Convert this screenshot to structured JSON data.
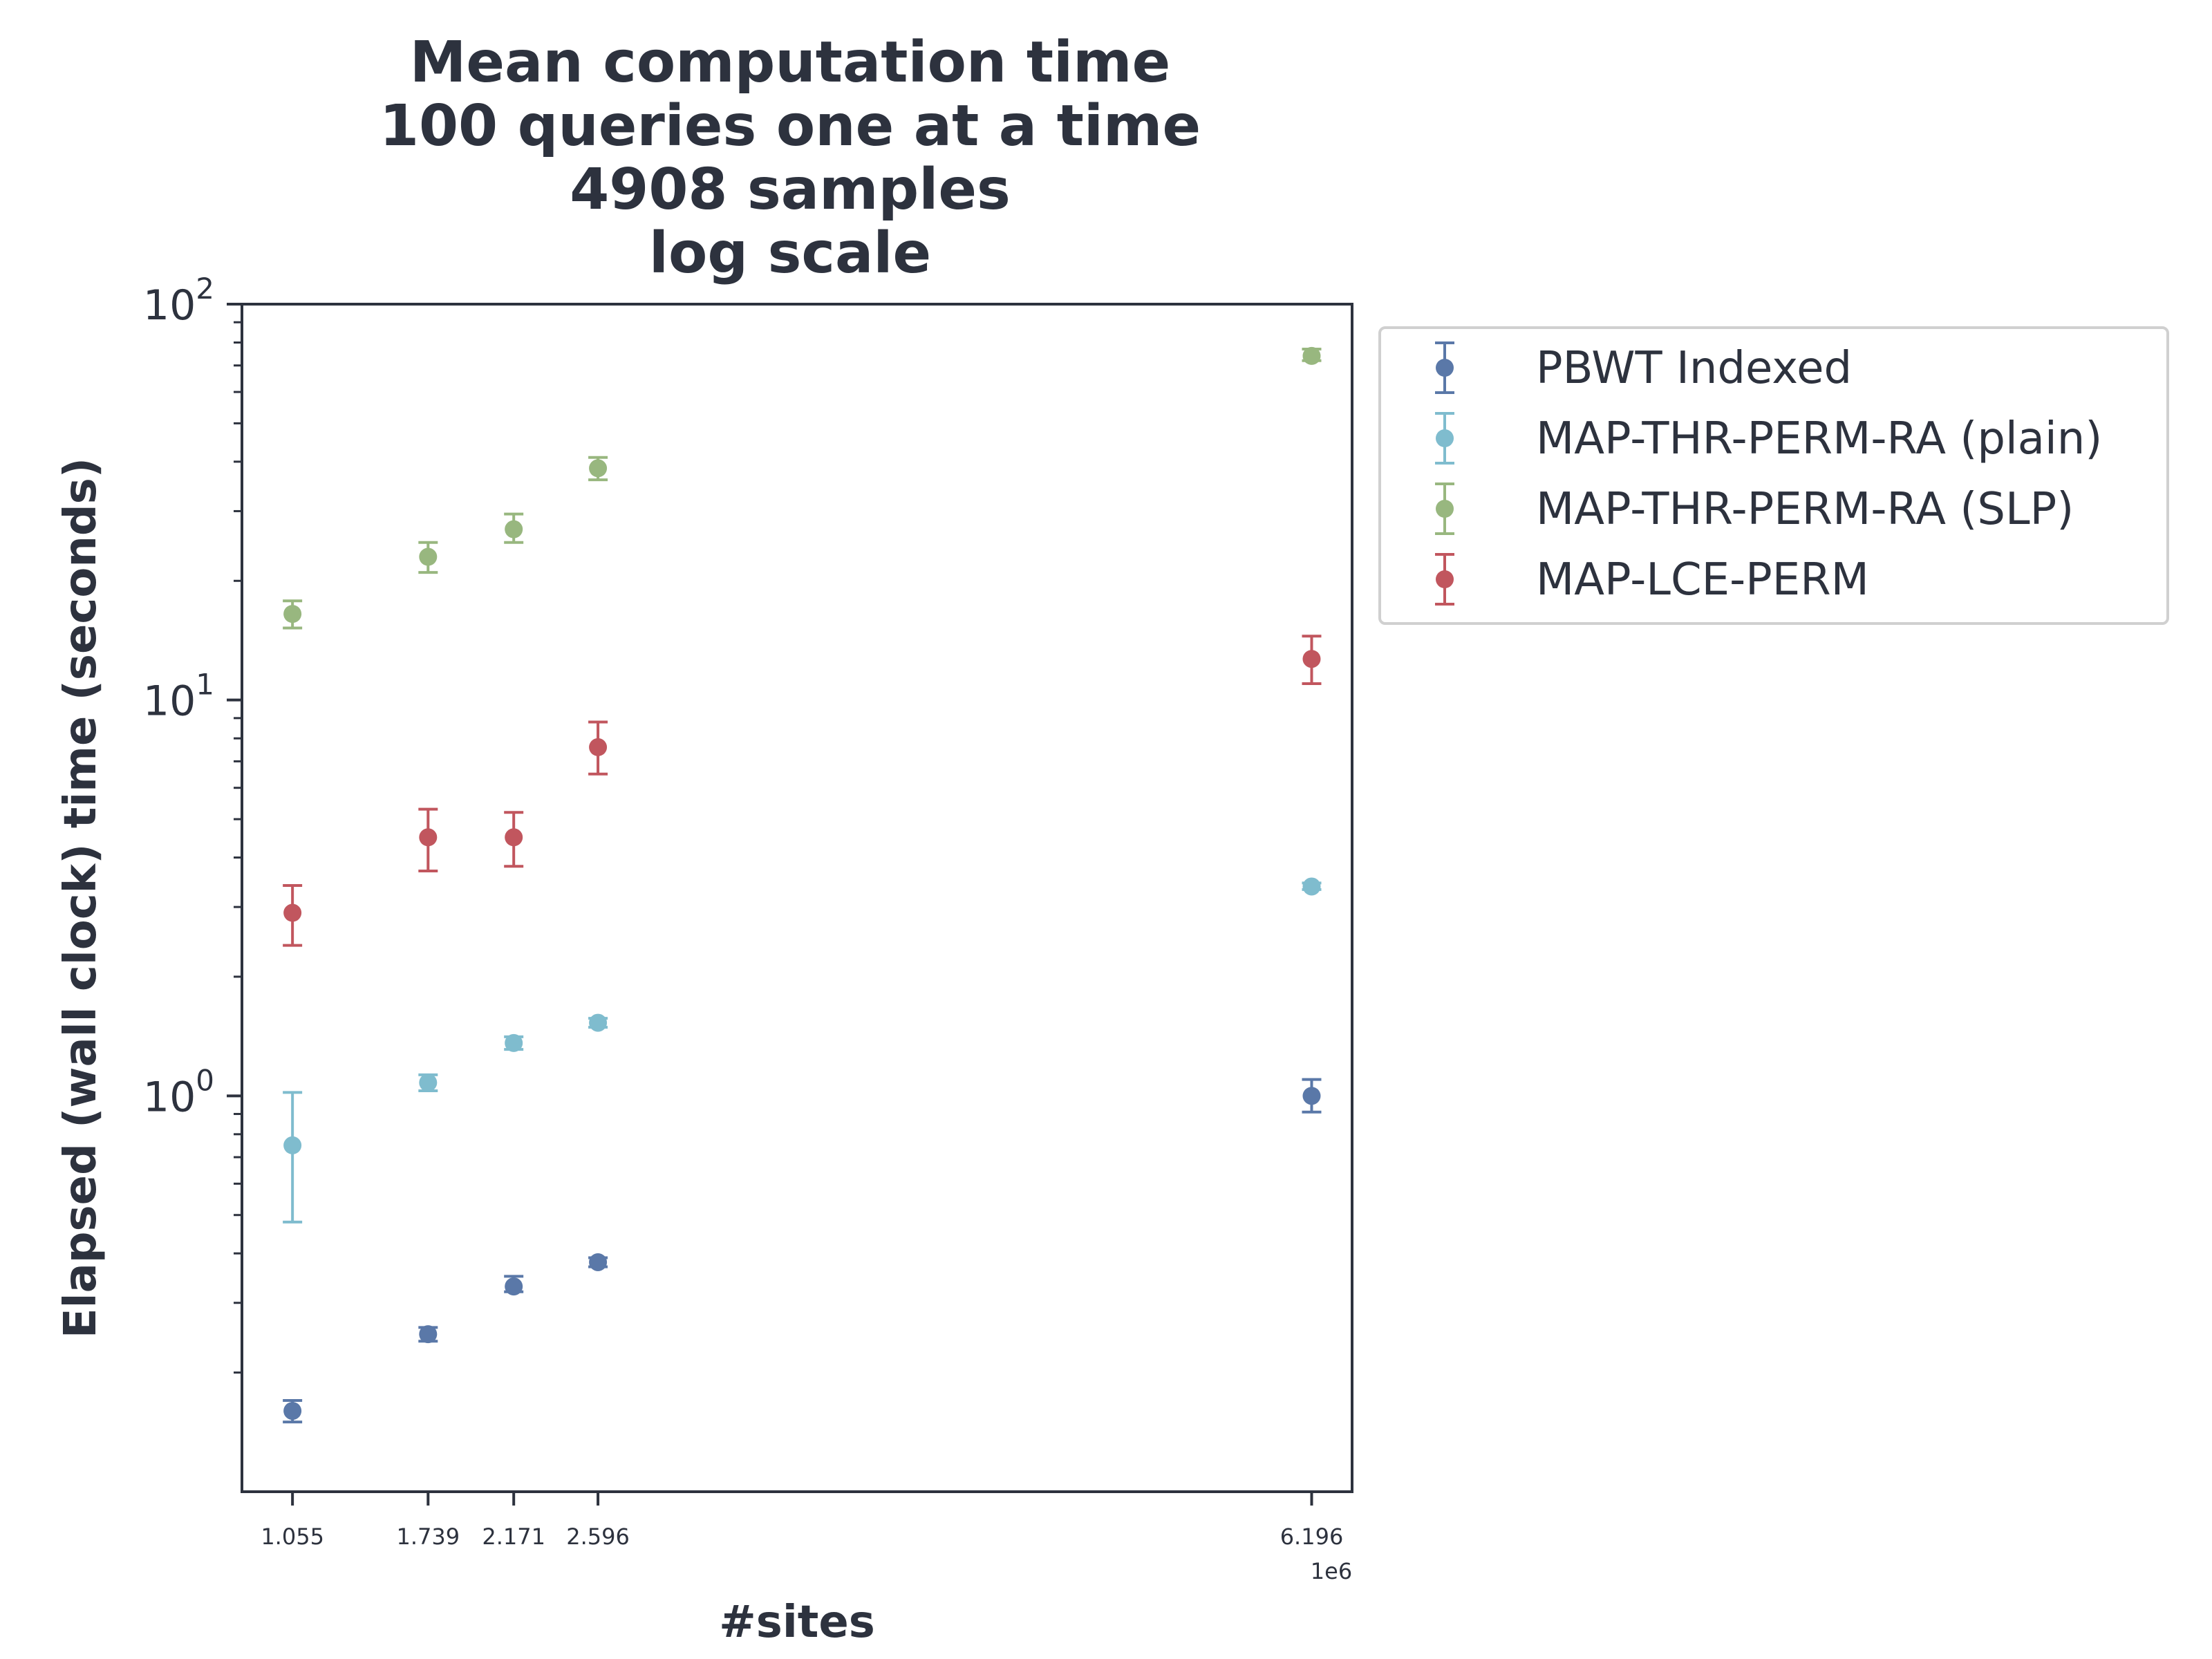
{
  "chart_data": {
    "type": "scatter",
    "title_lines": [
      "Mean computation time",
      "100 queries one at a time",
      "4908 samples",
      "log scale"
    ],
    "xlabel": "#sites",
    "ylabel": "Elapsed (wall clock) time (seconds)",
    "x_offset_label": "1e6",
    "y_scale": "log",
    "ylim": [
      0.1,
      100
    ],
    "xlim": [
      0.8,
      6.4
    ],
    "x_ticks": [
      1.055,
      1.739,
      2.171,
      2.596,
      6.196
    ],
    "x_tick_labels": [
      "1.055",
      "1.739",
      "2.171",
      "2.596",
      "6.196"
    ],
    "y_major_ticks": [
      {
        "value": 1,
        "base": "10",
        "exp": "0"
      },
      {
        "value": 10,
        "base": "10",
        "exp": "1"
      },
      {
        "value": 100,
        "base": "10",
        "exp": "2"
      }
    ],
    "x": [
      1.055,
      1.739,
      2.171,
      2.596,
      6.196
    ],
    "legend_position": "outside-upper-right",
    "grid": false,
    "series": [
      {
        "name": "PBWT Indexed",
        "color": "#5a78a8",
        "values": [
          0.16,
          0.25,
          0.33,
          0.38,
          1.0
        ],
        "err_low": [
          0.15,
          0.24,
          0.32,
          0.37,
          0.91
        ],
        "err_high": [
          0.17,
          0.26,
          0.35,
          0.39,
          1.1
        ]
      },
      {
        "name": "MAP-THR-PERM-RA (plain)",
        "color": "#7fbcce",
        "values": [
          0.75,
          1.08,
          1.36,
          1.53,
          3.38
        ],
        "err_low": [
          0.48,
          1.03,
          1.31,
          1.49,
          3.32
        ],
        "err_high": [
          1.02,
          1.13,
          1.41,
          1.57,
          3.45
        ]
      },
      {
        "name": "MAP-THR-PERM-RA (SLP)",
        "color": "#98b77f",
        "values": [
          16.5,
          23.0,
          27.0,
          38.5,
          74.0
        ],
        "err_low": [
          15.2,
          21.0,
          25.0,
          36.0,
          72.0
        ],
        "err_high": [
          17.8,
          25.0,
          29.5,
          41.0,
          77.0
        ]
      },
      {
        "name": "MAP-LCE-PERM",
        "color": "#c1565e",
        "values": [
          2.9,
          4.5,
          4.5,
          7.6,
          12.7
        ],
        "err_low": [
          2.4,
          3.7,
          3.8,
          6.5,
          11.0
        ],
        "err_high": [
          3.4,
          5.3,
          5.2,
          8.8,
          14.5
        ]
      }
    ]
  }
}
